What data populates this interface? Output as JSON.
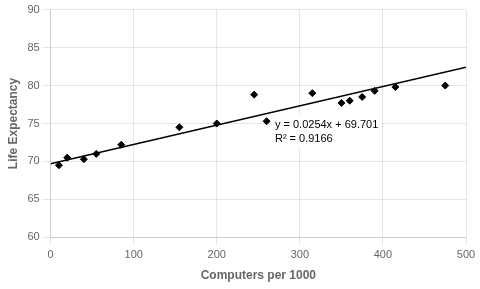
{
  "chart_data": {
    "type": "scatter",
    "x_label": "Computers per 1000",
    "y_label": "Life Expectancy",
    "xlim": [
      0,
      500
    ],
    "ylim": [
      60,
      90
    ],
    "xticks": [
      0,
      100,
      200,
      300,
      400,
      500
    ],
    "yticks": [
      60,
      65,
      70,
      75,
      80,
      85,
      90
    ],
    "grid": true,
    "annotations": [
      "y = 0.0254x + 69.701",
      "R² = 0.9166"
    ],
    "series": [
      {
        "type": "scatter",
        "color": "#000000",
        "marker": "diamond",
        "x": [
          10,
          20,
          40,
          55,
          85,
          155,
          200,
          245,
          260,
          315,
          350,
          360,
          375,
          390,
          415,
          475
        ],
        "values": [
          69.5,
          70.5,
          70.3,
          71.0,
          72.2,
          74.5,
          75.0,
          78.8,
          75.3,
          79.0,
          77.7,
          78.0,
          78.5,
          79.3,
          79.8,
          80.0
        ]
      },
      {
        "type": "line",
        "color": "#000000",
        "x": [
          0,
          500
        ],
        "values": [
          69.701,
          82.401
        ]
      }
    ]
  }
}
